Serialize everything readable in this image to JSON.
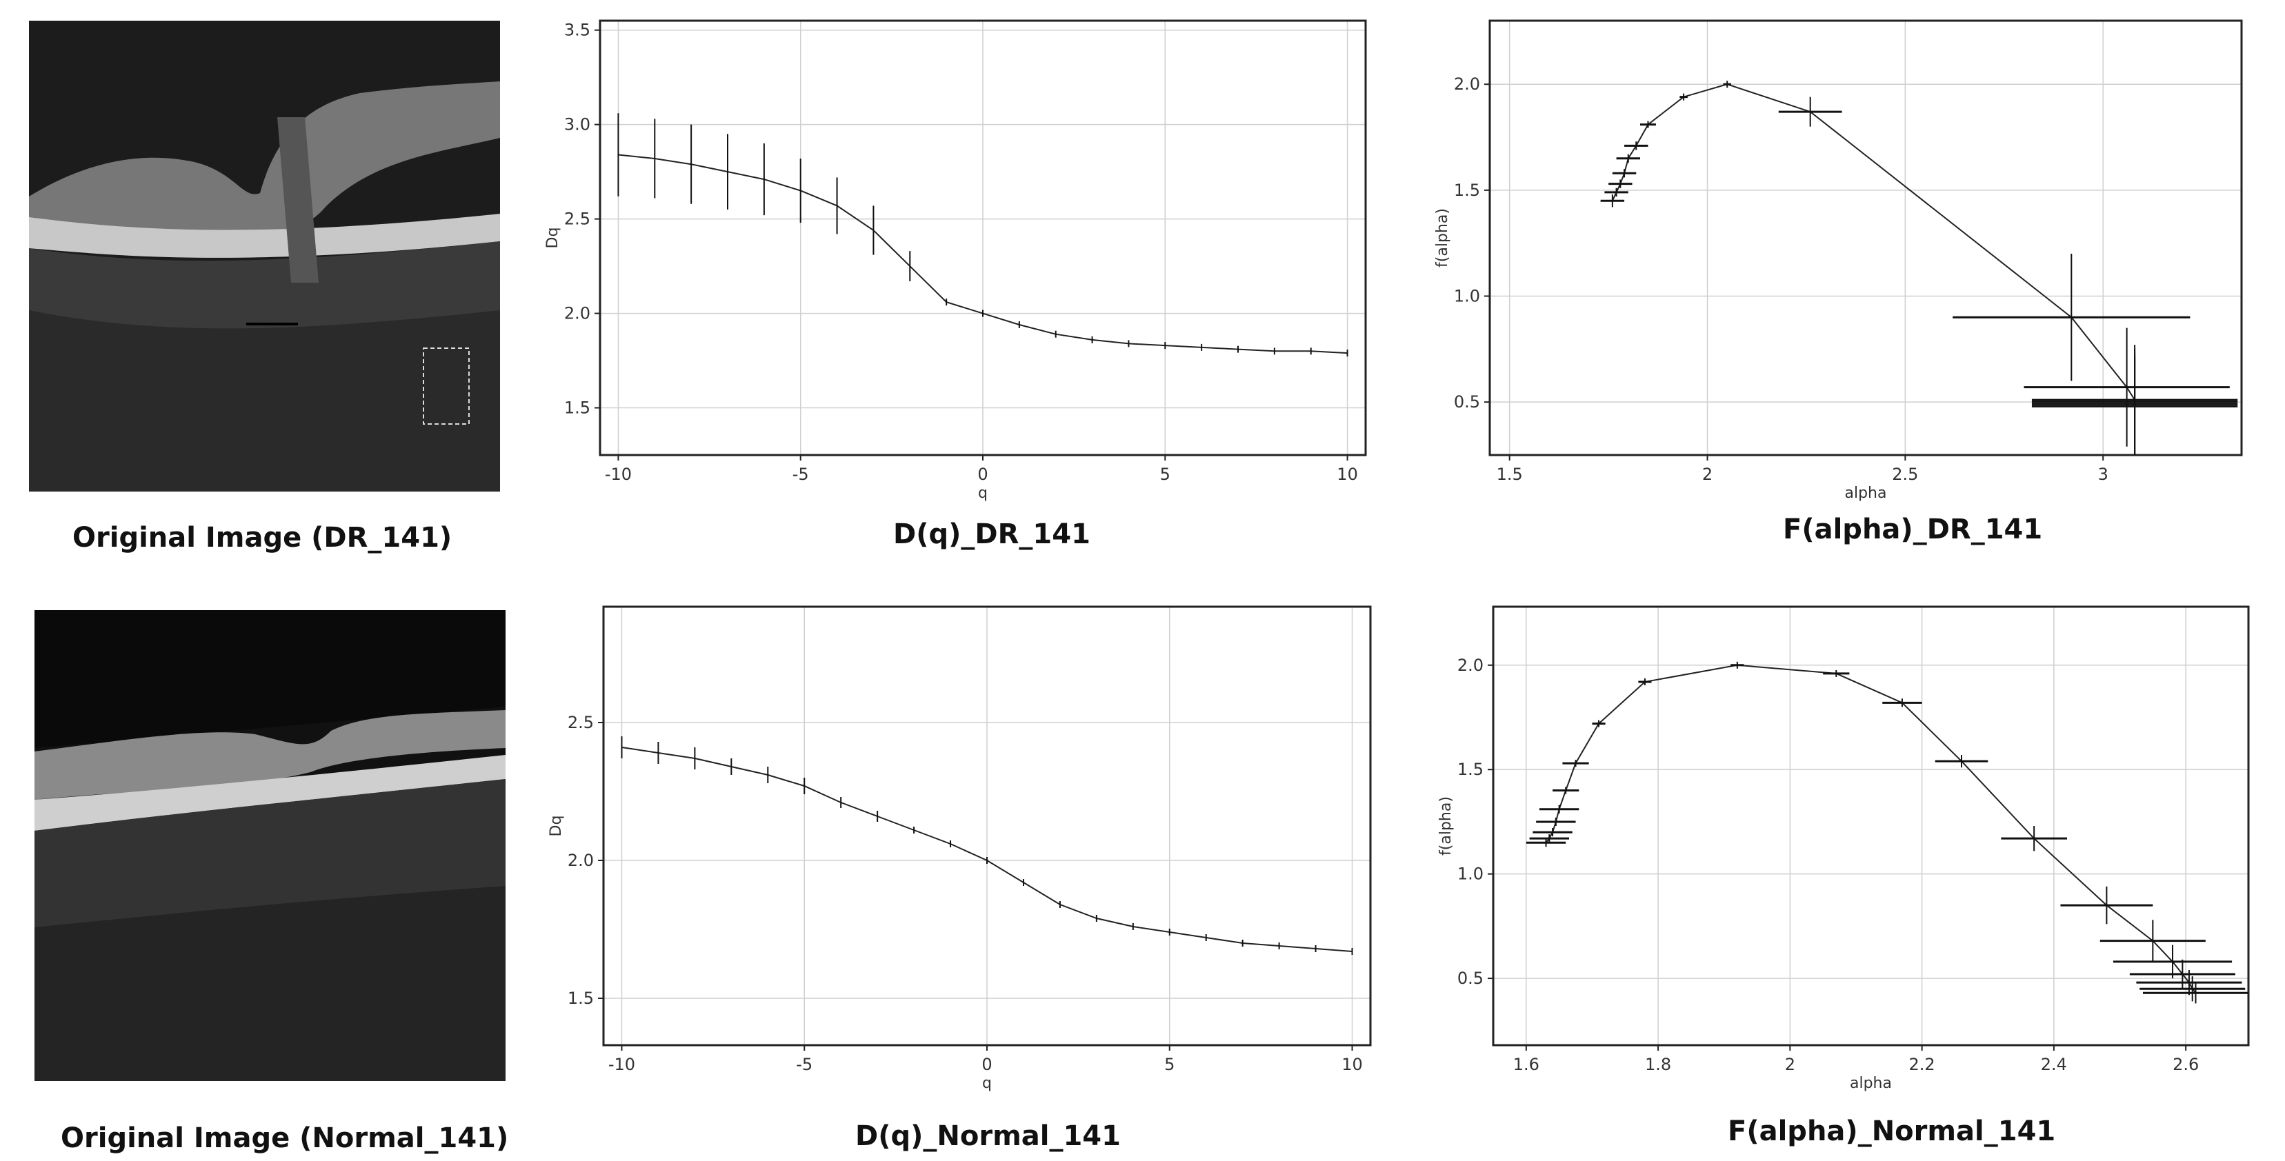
{
  "captions": {
    "orig_dr": "Original Image (DR_141)",
    "dq_dr": "D(q)_DR_141",
    "fa_dr": "F(alpha)_DR_141",
    "orig_normal": "Original Image (Normal_141)",
    "dq_normal": "D(q)_Normal_141",
    "fa_normal": "F(alpha)_Normal_141"
  },
  "chart_data": [
    {
      "id": "dq_dr",
      "type": "line",
      "title": "D(q)_DR_141",
      "xlabel": "q",
      "ylabel": "Dq",
      "xlim": [
        -10.5,
        10.5
      ],
      "ylim": [
        1.25,
        3.55
      ],
      "xticks": [
        -10,
        -5,
        0,
        5,
        10
      ],
      "yticks": [
        1.5,
        2.0,
        2.5,
        3.0,
        3.5
      ],
      "grid": true,
      "x": [
        -10,
        -9,
        -8,
        -7,
        -6,
        -5,
        -4,
        -3,
        -2,
        -1,
        0,
        1,
        2,
        3,
        4,
        5,
        6,
        7,
        8,
        9,
        10
      ],
      "y": [
        2.84,
        2.82,
        2.79,
        2.75,
        2.71,
        2.65,
        2.57,
        2.44,
        2.25,
        2.06,
        2.0,
        1.94,
        1.89,
        1.86,
        1.84,
        1.83,
        1.82,
        1.81,
        1.8,
        1.8,
        1.79
      ],
      "yerr": [
        0.22,
        0.21,
        0.21,
        0.2,
        0.19,
        0.17,
        0.15,
        0.13,
        0.08,
        0.01,
        0.0,
        0.01,
        0.01,
        0.01,
        0.01,
        0.01,
        0.01,
        0.01,
        0.01,
        0.01,
        0.01
      ],
      "xerr": []
    },
    {
      "id": "fa_dr",
      "type": "line",
      "title": "F(alpha)_DR_141",
      "xlabel": "alpha",
      "ylabel": "f(alpha)",
      "xlim": [
        1.45,
        3.35
      ],
      "ylim": [
        0.25,
        2.3
      ],
      "xticks": [
        1.5,
        2.0,
        2.5,
        3.0
      ],
      "yticks": [
        0.5,
        1.0,
        1.5,
        2.0
      ],
      "grid": true,
      "x": [
        1.76,
        1.77,
        1.78,
        1.79,
        1.8,
        1.82,
        1.85,
        1.94,
        2.05,
        2.26,
        2.92,
        3.06,
        3.08,
        3.08,
        3.08,
        3.08
      ],
      "y": [
        1.45,
        1.49,
        1.53,
        1.58,
        1.65,
        1.71,
        1.81,
        1.94,
        2.0,
        1.87,
        0.9,
        0.57,
        0.51,
        0.5,
        0.49,
        0.48
      ],
      "yerr": [
        0.03,
        0.02,
        0.02,
        0.02,
        0.02,
        0.02,
        0.01,
        0.01,
        0.0,
        0.07,
        0.3,
        0.28,
        0.26,
        0.25,
        0.24,
        0.23
      ],
      "xerr": [
        0.03,
        0.03,
        0.03,
        0.03,
        0.03,
        0.03,
        0.02,
        0.01,
        0.01,
        0.08,
        0.3,
        0.26,
        0.26,
        0.26,
        0.26,
        0.26
      ]
    },
    {
      "id": "dq_normal",
      "type": "line",
      "title": "D(q)_Normal_141",
      "xlabel": "q",
      "ylabel": "Dq",
      "xlim": [
        -10.5,
        10.5
      ],
      "ylim": [
        1.33,
        2.92
      ],
      "xticks": [
        -10,
        -5,
        0,
        5,
        10
      ],
      "yticks": [
        1.5,
        2.0,
        2.5
      ],
      "grid": true,
      "x": [
        -10,
        -9,
        -8,
        -7,
        -6,
        -5,
        -4,
        -3,
        -2,
        -1,
        0,
        1,
        2,
        3,
        4,
        5,
        6,
        7,
        8,
        9,
        10
      ],
      "y": [
        2.41,
        2.39,
        2.37,
        2.34,
        2.31,
        2.27,
        2.21,
        2.16,
        2.11,
        2.06,
        2.0,
        1.92,
        1.84,
        1.79,
        1.76,
        1.74,
        1.72,
        1.7,
        1.69,
        1.68,
        1.67
      ],
      "yerr": [
        0.04,
        0.04,
        0.04,
        0.03,
        0.03,
        0.03,
        0.02,
        0.02,
        0.01,
        0.01,
        0.0,
        0.01,
        0.01,
        0.01,
        0.01,
        0.01,
        0.01,
        0.01,
        0.01,
        0.01,
        0.01
      ],
      "xerr": []
    },
    {
      "id": "fa_normal",
      "type": "line",
      "title": "F(alpha)_Normal_141",
      "xlabel": "alpha",
      "ylabel": "f(alpha)",
      "xlim": [
        1.55,
        2.695
      ],
      "ylim": [
        0.18,
        2.28
      ],
      "xticks": [
        1.6,
        1.8,
        2.0,
        2.2,
        2.4,
        2.6
      ],
      "yticks": [
        0.5,
        1.0,
        1.5,
        2.0
      ],
      "grid": true,
      "x": [
        1.63,
        1.635,
        1.64,
        1.645,
        1.65,
        1.66,
        1.675,
        1.71,
        1.78,
        1.92,
        2.07,
        2.17,
        2.26,
        2.37,
        2.48,
        2.55,
        2.58,
        2.595,
        2.605,
        2.61,
        2.615
      ],
      "y": [
        1.15,
        1.17,
        1.2,
        1.25,
        1.31,
        1.4,
        1.53,
        1.72,
        1.92,
        2.0,
        1.96,
        1.82,
        1.54,
        1.17,
        0.85,
        0.68,
        0.58,
        0.52,
        0.48,
        0.45,
        0.43
      ],
      "yerr": [
        0.02,
        0.02,
        0.02,
        0.02,
        0.02,
        0.01,
        0.01,
        0.01,
        0.01,
        0.0,
        0.01,
        0.02,
        0.03,
        0.06,
        0.09,
        0.1,
        0.08,
        0.07,
        0.06,
        0.06,
        0.05
      ],
      "xerr": [
        0.03,
        0.03,
        0.03,
        0.03,
        0.03,
        0.02,
        0.02,
        0.01,
        0.01,
        0.01,
        0.02,
        0.03,
        0.04,
        0.05,
        0.07,
        0.08,
        0.09,
        0.08,
        0.08,
        0.08,
        0.08
      ]
    }
  ]
}
